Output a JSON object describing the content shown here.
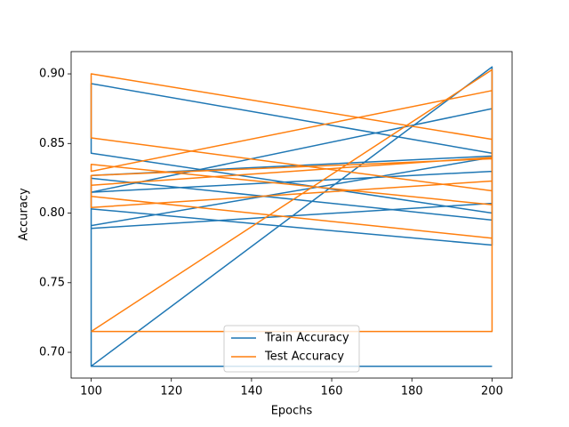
{
  "chart_data": {
    "type": "line",
    "xlabel": "Epochs",
    "ylabel": "Accuracy",
    "xlim": [
      95,
      205
    ],
    "ylim": [
      0.6815,
      0.916
    ],
    "xticks": [
      100,
      120,
      140,
      160,
      180,
      200
    ],
    "yticks": [
      {
        "value": 0.7,
        "label": "0.70"
      },
      0.75,
      {
        "value": 0.8,
        "label": "0.80"
      },
      0.85,
      {
        "value": 0.9,
        "label": "0.90"
      }
    ],
    "legend": "lower center",
    "series": [
      {
        "name": "Train Accuracy",
        "color": "#1f77b4",
        "x": [
          100,
          200,
          200,
          100,
          100,
          200,
          200,
          100,
          100,
          200,
          200,
          100,
          100,
          200,
          200,
          100,
          100,
          200,
          200,
          100,
          100,
          200
        ],
        "values": [
          0.69,
          0.905,
          0.843,
          0.893,
          0.843,
          0.8,
          0.875,
          0.815,
          0.791,
          0.84,
          0.777,
          0.803,
          0.789,
          0.807,
          0.795,
          0.825,
          0.815,
          0.83,
          0.841,
          0.827,
          0.69,
          0.69
        ]
      },
      {
        "name": "Test Accuracy",
        "color": "#ff7f0e",
        "x": [
          100,
          200,
          200,
          100,
          100,
          200,
          200,
          100,
          100,
          200,
          200,
          100,
          100,
          200,
          200,
          100,
          100,
          200,
          200,
          100
        ],
        "values": [
          0.715,
          0.903,
          0.853,
          0.9,
          0.854,
          0.816,
          0.888,
          0.83,
          0.835,
          0.806,
          0.839,
          0.827,
          0.812,
          0.782,
          0.823,
          0.804,
          0.82,
          0.84,
          0.715,
          0.715
        ]
      }
    ]
  }
}
